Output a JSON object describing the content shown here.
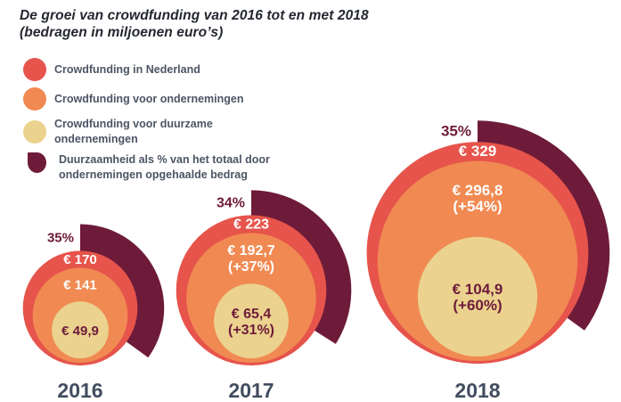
{
  "title": {
    "line1": "De groei van crowdfunding van 2016 tot en met 2018",
    "line2": "(bedragen in miljoenen euro’s)"
  },
  "colors": {
    "red": "#e6544b",
    "orange": "#f08a52",
    "yellow": "#ebd28e",
    "maroon": "#6e1b3a",
    "slate": "#414d5e",
    "white": "#ffffff"
  },
  "legend": [
    {
      "label": "Crowdfunding in Nederland",
      "color": "#e6544b",
      "marker": "circle"
    },
    {
      "label": "Crowdfunding voor ondernemingen",
      "color": "#f08a52",
      "marker": "circle"
    },
    {
      "label": "Crowdfunding voor duurzame ondernemingen",
      "color": "#ebd28e",
      "marker": "circle"
    },
    {
      "label": "Duurzaamheid als % van het totaal door ondernemingen opgehaalde bedrag",
      "color": "#6e1b3a",
      "marker": "arc"
    }
  ],
  "chart_data": {
    "type": "bubble",
    "subtype": "nested-proportional-circles",
    "title": "De groei van crowdfunding van 2016 tot en met 2018",
    "subtitle": "(bedragen in miljoenen euro’s)",
    "units": "miljoenen euro’s",
    "categories": [
      "2016",
      "2017",
      "2018"
    ],
    "series": [
      {
        "name": "Crowdfunding in Nederland",
        "values": [
          170,
          223,
          329
        ]
      },
      {
        "name": "Crowdfunding voor ondernemingen",
        "values": [
          141,
          192.7,
          296.8
        ]
      },
      {
        "name": "Crowdfunding voor duurzame ondernemingen",
        "values": [
          49.9,
          65.4,
          104.9
        ]
      },
      {
        "name": "Duurzaamheid als % van het totaal door ondernemingen opgehaalde bedrag",
        "values": [
          35,
          34,
          35
        ],
        "unit": "%"
      }
    ],
    "growth": {
      "ondernemingen": [
        null,
        "+37%",
        "+54%"
      ],
      "duurzame_ondernemingen": [
        null,
        "+31%",
        "+60%"
      ]
    },
    "years": [
      {
        "year": "2016",
        "pct": 35,
        "pct_label": "35%",
        "total": 170,
        "total_label": "€ 170",
        "companies": 141,
        "companies_label": "€ 141",
        "companies_growth": null,
        "sustainable": 49.9,
        "sustainable_label": "€ 49,9",
        "sustainable_growth": null
      },
      {
        "year": "2017",
        "pct": 34,
        "pct_label": "34%",
        "total": 223,
        "total_label": "€ 223",
        "companies": 192.7,
        "companies_label": "€ 192,7",
        "companies_growth": "(+37%)",
        "sustainable": 65.4,
        "sustainable_label": "€ 65,4",
        "sustainable_growth": "(+31%)"
      },
      {
        "year": "2018",
        "pct": 35,
        "pct_label": "35%",
        "total": 329,
        "total_label": "€ 329",
        "companies": 296.8,
        "companies_label": "€ 296,8",
        "companies_growth": "(+54%)",
        "sustainable": 104.9,
        "sustainable_label": "€ 104,9",
        "sustainable_growth": "(+60%)"
      }
    ]
  }
}
